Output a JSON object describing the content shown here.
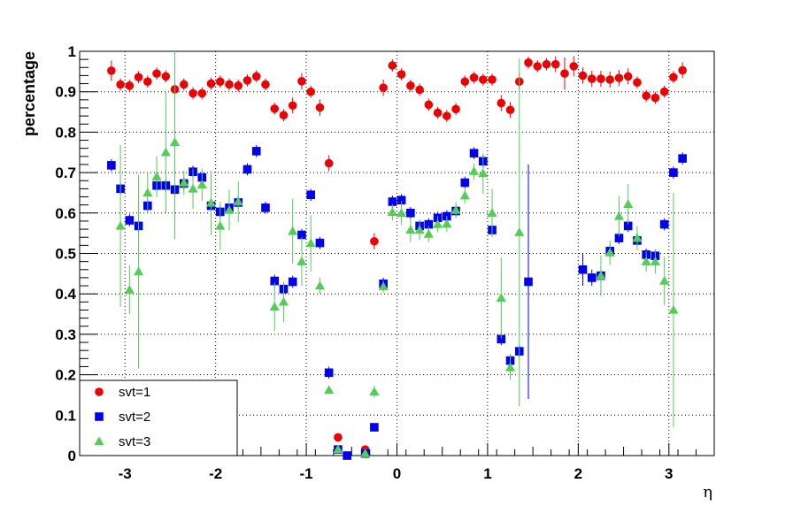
{
  "chart_data": {
    "type": "scatter",
    "xlabel": "η",
    "ylabel": "percentage",
    "xlim": [
      -3.5,
      3.5
    ],
    "ylim": [
      0,
      1
    ],
    "xticks": [
      -3,
      -2,
      -1,
      0,
      1,
      2,
      3
    ],
    "xtick_labels": [
      "-3",
      "-2",
      "-1",
      "0",
      "1",
      "2",
      "3"
    ],
    "yticks": [
      0,
      0.1,
      0.2,
      0.3,
      0.4,
      0.5,
      0.6,
      0.7,
      0.8,
      0.9,
      1
    ],
    "ytick_labels": [
      "0",
      "0.1",
      "0.2",
      "0.3",
      "0.4",
      "0.5",
      "0.6",
      "0.7",
      "0.8",
      "0.9",
      "1"
    ],
    "grid": true,
    "legend_position": "bottom-left",
    "series": [
      {
        "name": "svt=1",
        "color": "#ee0000",
        "marker": "circle",
        "points": [
          [
            -3.15,
            0.952,
            0.025
          ],
          [
            -3.05,
            0.918,
            0.015
          ],
          [
            -2.95,
            0.915,
            0.015
          ],
          [
            -2.85,
            0.936,
            0.015
          ],
          [
            -2.75,
            0.925,
            0.015
          ],
          [
            -2.65,
            0.945,
            0.015
          ],
          [
            -2.55,
            0.938,
            0.015
          ],
          [
            -2.45,
            0.906,
            0.02
          ],
          [
            -2.35,
            0.918,
            0.015
          ],
          [
            -2.25,
            0.896,
            0.015
          ],
          [
            -2.15,
            0.896,
            0.015
          ],
          [
            -2.05,
            0.92,
            0.015
          ],
          [
            -1.95,
            0.925,
            0.015
          ],
          [
            -1.85,
            0.918,
            0.015
          ],
          [
            -1.75,
            0.915,
            0.015
          ],
          [
            -1.65,
            0.928,
            0.015
          ],
          [
            -1.55,
            0.938,
            0.015
          ],
          [
            -1.45,
            0.918,
            0.015
          ],
          [
            -1.35,
            0.858,
            0.015
          ],
          [
            -1.25,
            0.842,
            0.015
          ],
          [
            -1.15,
            0.866,
            0.02
          ],
          [
            -1.05,
            0.926,
            0.02
          ],
          [
            -0.95,
            0.9,
            0.015
          ],
          [
            -0.85,
            0.861,
            0.02
          ],
          [
            -0.75,
            0.723,
            0.02
          ],
          [
            -0.65,
            0.045,
            0.01
          ],
          [
            -0.35,
            0.015,
            0.01
          ],
          [
            -0.25,
            0.53,
            0.02
          ],
          [
            -0.15,
            0.91,
            0.02
          ],
          [
            -0.05,
            0.965,
            0.015
          ],
          [
            0.05,
            0.943,
            0.015
          ],
          [
            0.15,
            0.915,
            0.015
          ],
          [
            0.25,
            0.905,
            0.015
          ],
          [
            0.35,
            0.868,
            0.015
          ],
          [
            0.45,
            0.848,
            0.015
          ],
          [
            0.55,
            0.84,
            0.015
          ],
          [
            0.65,
            0.857,
            0.015
          ],
          [
            0.75,
            0.925,
            0.015
          ],
          [
            0.85,
            0.935,
            0.015
          ],
          [
            0.95,
            0.93,
            0.015
          ],
          [
            1.05,
            0.93,
            0.015
          ],
          [
            1.15,
            0.872,
            0.02
          ],
          [
            1.25,
            0.855,
            0.02
          ],
          [
            1.35,
            0.925,
            0.02
          ],
          [
            1.45,
            0.972,
            0.015
          ],
          [
            1.55,
            0.963,
            0.015
          ],
          [
            1.65,
            0.968,
            0.015
          ],
          [
            1.75,
            0.968,
            0.02
          ],
          [
            1.85,
            0.945,
            0.04
          ],
          [
            1.95,
            0.963,
            0.025
          ],
          [
            2.05,
            0.94,
            0.02
          ],
          [
            2.15,
            0.932,
            0.02
          ],
          [
            2.25,
            0.932,
            0.02
          ],
          [
            2.35,
            0.93,
            0.02
          ],
          [
            2.45,
            0.934,
            0.02
          ],
          [
            2.55,
            0.938,
            0.02
          ],
          [
            2.65,
            0.923,
            0.015
          ],
          [
            2.75,
            0.89,
            0.015
          ],
          [
            2.85,
            0.885,
            0.015
          ],
          [
            2.95,
            0.9,
            0.015
          ],
          [
            3.05,
            0.936,
            0.015
          ],
          [
            3.15,
            0.953,
            0.02
          ]
        ]
      },
      {
        "name": "svt=2",
        "color": "#0000ee",
        "marker": "square",
        "points": [
          [
            -3.15,
            0.718,
            0.015
          ],
          [
            -3.05,
            0.66,
            0.015
          ],
          [
            -2.95,
            0.582,
            0.015
          ],
          [
            -2.85,
            0.568,
            0.015
          ],
          [
            -2.75,
            0.618,
            0.015
          ],
          [
            -2.65,
            0.668,
            0.015
          ],
          [
            -2.55,
            0.668,
            0.015
          ],
          [
            -2.45,
            0.658,
            0.015
          ],
          [
            -2.35,
            0.673,
            0.015
          ],
          [
            -2.25,
            0.702,
            0.015
          ],
          [
            -2.15,
            0.688,
            0.015
          ],
          [
            -2.05,
            0.618,
            0.015
          ],
          [
            -1.95,
            0.603,
            0.015
          ],
          [
            -1.85,
            0.613,
            0.015
          ],
          [
            -1.75,
            0.626,
            0.015
          ],
          [
            -1.65,
            0.708,
            0.015
          ],
          [
            -1.55,
            0.753,
            0.015
          ],
          [
            -1.45,
            0.613,
            0.015
          ],
          [
            -1.35,
            0.432,
            0.015
          ],
          [
            -1.25,
            0.412,
            0.015
          ],
          [
            -1.15,
            0.43,
            0.015
          ],
          [
            -1.05,
            0.546,
            0.015
          ],
          [
            -0.95,
            0.645,
            0.015
          ],
          [
            -0.85,
            0.526,
            0.015
          ],
          [
            -0.75,
            0.205,
            0.015
          ],
          [
            -0.65,
            0.015,
            0.01
          ],
          [
            -0.55,
            0.0,
            0.005
          ],
          [
            -0.35,
            0.005,
            0.005
          ],
          [
            -0.25,
            0.07,
            0.01
          ],
          [
            -0.15,
            0.425,
            0.015
          ],
          [
            -0.05,
            0.628,
            0.015
          ],
          [
            0.05,
            0.632,
            0.015
          ],
          [
            0.15,
            0.6,
            0.015
          ],
          [
            0.25,
            0.568,
            0.015
          ],
          [
            0.35,
            0.572,
            0.015
          ],
          [
            0.45,
            0.588,
            0.015
          ],
          [
            0.55,
            0.592,
            0.015
          ],
          [
            0.65,
            0.605,
            0.015
          ],
          [
            0.75,
            0.675,
            0.015
          ],
          [
            0.85,
            0.748,
            0.015
          ],
          [
            0.95,
            0.728,
            0.015
          ],
          [
            1.05,
            0.558,
            0.015
          ],
          [
            1.15,
            0.288,
            0.015
          ],
          [
            1.25,
            0.235,
            0.015
          ],
          [
            1.35,
            0.258,
            0.015
          ],
          [
            1.45,
            0.43,
            0.29
          ],
          [
            2.05,
            0.46,
            0.04
          ],
          [
            2.15,
            0.44,
            0.02
          ],
          [
            2.25,
            0.445,
            0.02
          ],
          [
            2.35,
            0.506,
            0.015
          ],
          [
            2.45,
            0.538,
            0.015
          ],
          [
            2.55,
            0.568,
            0.015
          ],
          [
            2.65,
            0.532,
            0.015
          ],
          [
            2.75,
            0.497,
            0.015
          ],
          [
            2.85,
            0.494,
            0.015
          ],
          [
            2.95,
            0.572,
            0.015
          ],
          [
            3.05,
            0.7,
            0.015
          ],
          [
            3.15,
            0.735,
            0.015
          ]
        ]
      },
      {
        "name": "svt=3",
        "color": "#55cc55",
        "marker": "triangle",
        "points": [
          [
            -3.05,
            0.568,
            0.2
          ],
          [
            -2.95,
            0.41,
            0.06
          ],
          [
            -2.85,
            0.455,
            0.24
          ],
          [
            -2.75,
            0.65,
            0.05
          ],
          [
            -2.65,
            0.69,
            0.05
          ],
          [
            -2.55,
            0.75,
            0.15
          ],
          [
            -2.45,
            0.775,
            0.24
          ],
          [
            -2.35,
            0.675,
            0.03
          ],
          [
            -2.25,
            0.66,
            0.05
          ],
          [
            -2.15,
            0.67,
            0.04
          ],
          [
            -2.05,
            0.625,
            0.08
          ],
          [
            -1.95,
            0.568,
            0.06
          ],
          [
            -1.85,
            0.607,
            0.05
          ],
          [
            -1.75,
            0.628,
            0.05
          ],
          [
            -1.35,
            0.368,
            0.06
          ],
          [
            -1.25,
            0.38,
            0.05
          ],
          [
            -1.15,
            0.555,
            0.08
          ],
          [
            -1.05,
            0.48,
            0.06
          ],
          [
            -0.95,
            0.525,
            0.07
          ],
          [
            -0.85,
            0.42,
            0.02
          ],
          [
            -0.75,
            0.162,
            0.01
          ],
          [
            -0.65,
            0.015,
            0.01
          ],
          [
            -0.35,
            0.005,
            0.01
          ],
          [
            -0.25,
            0.158,
            0.015
          ],
          [
            -0.15,
            0.418,
            0.015
          ],
          [
            -0.05,
            0.602,
            0.02
          ],
          [
            0.05,
            0.6,
            0.03
          ],
          [
            0.15,
            0.558,
            0.03
          ],
          [
            0.25,
            0.558,
            0.025
          ],
          [
            0.35,
            0.548,
            0.02
          ],
          [
            0.45,
            0.572,
            0.02
          ],
          [
            0.55,
            0.573,
            0.02
          ],
          [
            0.65,
            0.607,
            0.02
          ],
          [
            0.75,
            0.643,
            0.02
          ],
          [
            0.85,
            0.703,
            0.02
          ],
          [
            0.95,
            0.698,
            0.05
          ],
          [
            1.05,
            0.6,
            0.06
          ],
          [
            1.15,
            0.39,
            0.1
          ],
          [
            1.25,
            0.218,
            0.03
          ],
          [
            1.35,
            0.552,
            0.43
          ],
          [
            2.25,
            0.445,
            0.05
          ],
          [
            2.35,
            0.502,
            0.03
          ],
          [
            2.45,
            0.592,
            0.05
          ],
          [
            2.55,
            0.622,
            0.05
          ],
          [
            2.65,
            0.538,
            0.03
          ],
          [
            2.75,
            0.48,
            0.025
          ],
          [
            2.85,
            0.48,
            0.03
          ],
          [
            2.95,
            0.432,
            0.06
          ],
          [
            3.05,
            0.36,
            0.29
          ]
        ]
      }
    ]
  }
}
